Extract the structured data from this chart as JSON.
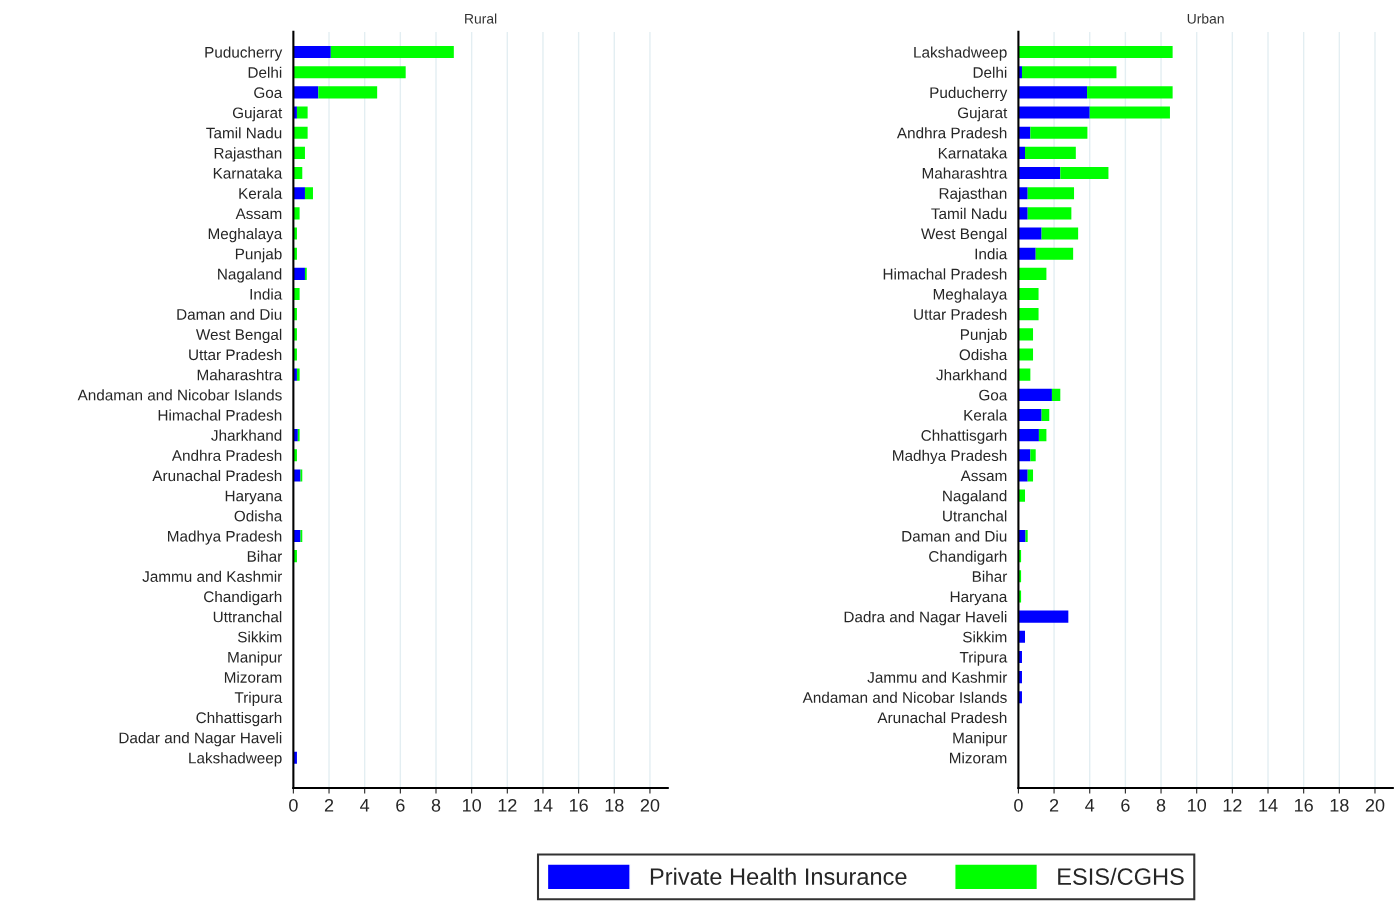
{
  "chart_data": [
    {
      "type": "bar",
      "orientation": "horizontal",
      "stacked": true,
      "title": "Rural",
      "legend": "bottom",
      "grid": "x",
      "xlim": [
        0,
        21
      ],
      "xticks": [
        0,
        2,
        4,
        6,
        8,
        10,
        12,
        14,
        16,
        18,
        20
      ],
      "categories": [
        "Puducherry",
        "Delhi",
        "Goa",
        "Gujarat",
        "Tamil Nadu",
        "Rajasthan",
        "Karnataka",
        "Kerala",
        "Assam",
        "Meghalaya",
        "Punjab",
        "Nagaland",
        "India",
        "Daman and Diu",
        "West Bengal",
        "Uttar Pradesh",
        "Maharashtra",
        "Andaman and Nicobar Islands",
        "Himachal Pradesh",
        "Jharkhand",
        "Andhra Pradesh",
        "Arunachal Pradesh",
        "Haryana",
        "Odisha",
        "Madhya Pradesh",
        "Bihar",
        "Jammu and Kashmir",
        "Chandigarh",
        "Uttranchal",
        "Sikkim",
        "Manipur",
        "Mizoram",
        "Tripura",
        "Chhattisgarh",
        "Dadar and Nagar Haveli",
        "Lakshadweep"
      ],
      "series": [
        {
          "name": "Private Health Insurance",
          "color": "#0000ff",
          "values": [
            2.1,
            0,
            1.4,
            0.2,
            0,
            0,
            0,
            0.65,
            0,
            0,
            0,
            0.65,
            0,
            0,
            0,
            0,
            0.2,
            0,
            0,
            0.25,
            0,
            0.4,
            0,
            0,
            0.4,
            0,
            0,
            0,
            0,
            0,
            0,
            0,
            0,
            0,
            0,
            0.2
          ]
        },
        {
          "name": "ESIS/CGHS",
          "color": "#00ff00",
          "values": [
            6.9,
            6.3,
            3.3,
            0.6,
            0.8,
            0.65,
            0.5,
            0.45,
            0.35,
            0.2,
            0.2,
            0.1,
            0.35,
            0.2,
            0.2,
            0.2,
            0.15,
            0,
            0,
            0.1,
            0.2,
            0.1,
            0,
            0,
            0.1,
            0.2,
            0,
            0,
            0,
            0,
            0,
            0,
            0,
            0,
            0,
            0
          ]
        }
      ]
    },
    {
      "type": "bar",
      "orientation": "horizontal",
      "stacked": true,
      "title": "Urban",
      "grid": "x",
      "xlim": [
        0,
        21
      ],
      "xticks": [
        0,
        2,
        4,
        6,
        8,
        10,
        12,
        14,
        16,
        18,
        20
      ],
      "categories": [
        "Lakshadweep",
        "Delhi",
        "Puducherry",
        "Gujarat",
        "Andhra Pradesh",
        "Karnataka",
        "Maharashtra",
        "Rajasthan",
        "Tamil Nadu",
        "West Bengal",
        "India",
        "Himachal Pradesh",
        "Meghalaya",
        "Uttar Pradesh",
        "Punjab",
        "Odisha",
        "Jharkhand",
        "Goa",
        "Kerala",
        "Chhattisgarh",
        "Madhya Pradesh",
        "Assam",
        "Nagaland",
        "Utranchal",
        "Daman and Diu",
        "Chandigarh",
        "Bihar",
        "Haryana",
        "Dadra and Nagar Haveli",
        "Sikkim",
        "Tripura",
        "Jammu and Kashmir",
        "Andaman and Nicobar Islands",
        "Arunachal Pradesh",
        "Manipur",
        "Mizoram"
      ],
      "series": [
        {
          "color": "#0000ff",
          "values": [
            0,
            0.2,
            3.85,
            4.0,
            0.67,
            0.37,
            2.35,
            0.52,
            0.52,
            1.3,
            0.97,
            0,
            0,
            0,
            0,
            0,
            0,
            1.88,
            1.3,
            1.15,
            0.67,
            0.52,
            0,
            0,
            0.4,
            0,
            0,
            0,
            2.8,
            0.37,
            0.2,
            0.2,
            0.2,
            0,
            0,
            0
          ]
        },
        {
          "color": "#00ff00",
          "values": [
            8.65,
            5.3,
            4.8,
            4.5,
            3.2,
            2.85,
            2.7,
            2.6,
            2.45,
            2.05,
            2.1,
            1.57,
            1.13,
            1.13,
            0.82,
            0.82,
            0.67,
            0.47,
            0.43,
            0.42,
            0.3,
            0.3,
            0.37,
            0,
            0.12,
            0.15,
            0.15,
            0.15,
            0,
            0,
            0,
            0,
            0,
            0,
            0,
            0
          ]
        }
      ]
    }
  ]
}
